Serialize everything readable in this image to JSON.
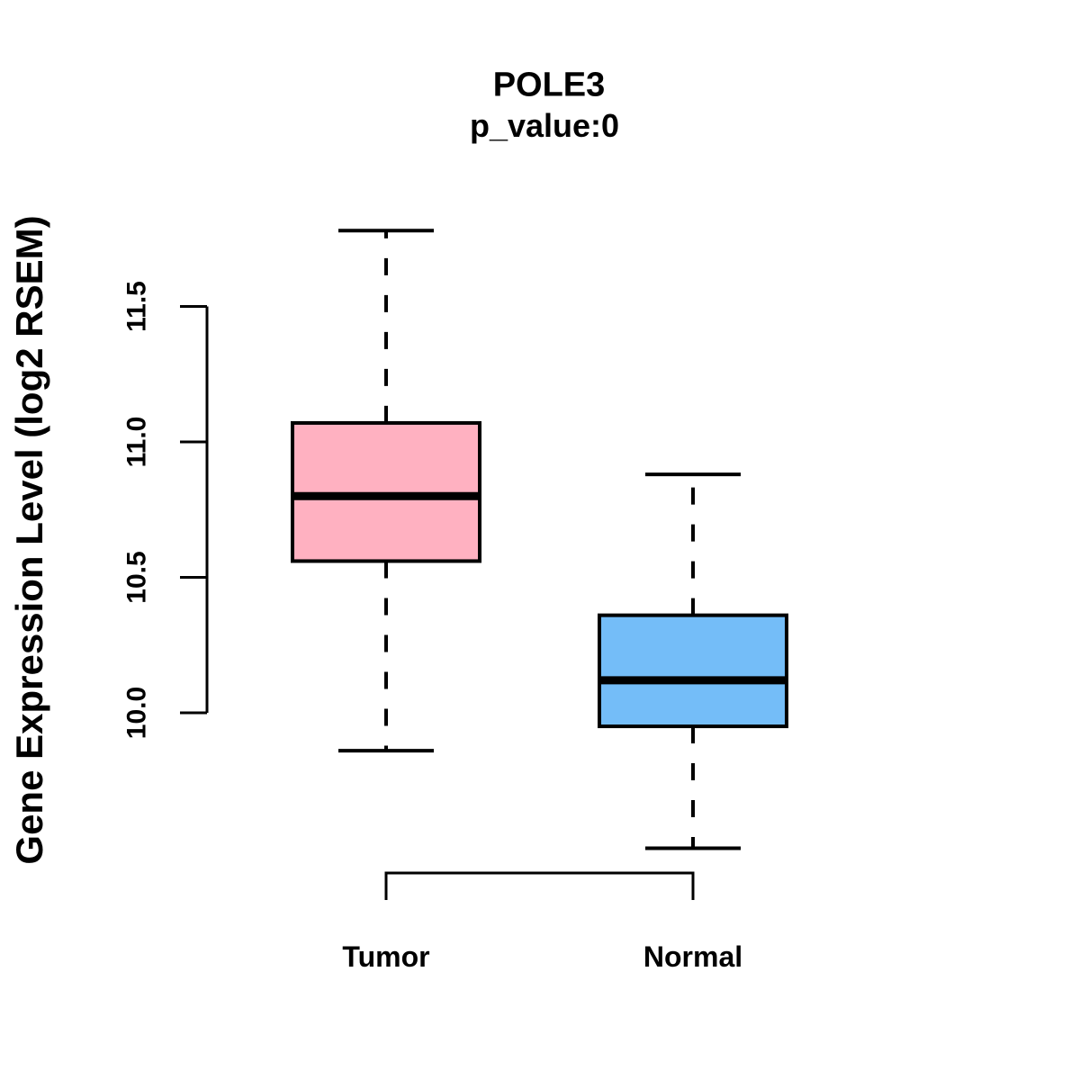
{
  "chart_data": {
    "type": "boxplot",
    "title": "POLE3",
    "subtitle": "p_value:0",
    "ylabel": "Gene Expression Level (log2 RSEM)",
    "xlabel": "",
    "categories": [
      "Tumor",
      "Normal"
    ],
    "y_ticks": [
      "10.0",
      "10.5",
      "11.0",
      "11.5"
    ],
    "ylim": [
      9.4,
      11.9
    ],
    "grid": false,
    "legend": "none",
    "line_color": "#000000",
    "background_color": "#FFFFFF",
    "series": [
      {
        "name": "Tumor",
        "color": "#FFB1C1",
        "whisker_low": 9.86,
        "q1": 10.56,
        "median": 10.8,
        "q3": 11.07,
        "whisker_high": 11.78
      },
      {
        "name": "Normal",
        "color": "#74BDF8",
        "whisker_low": 9.5,
        "q1": 9.95,
        "median": 10.12,
        "q3": 10.36,
        "whisker_high": 10.88
      }
    ]
  }
}
